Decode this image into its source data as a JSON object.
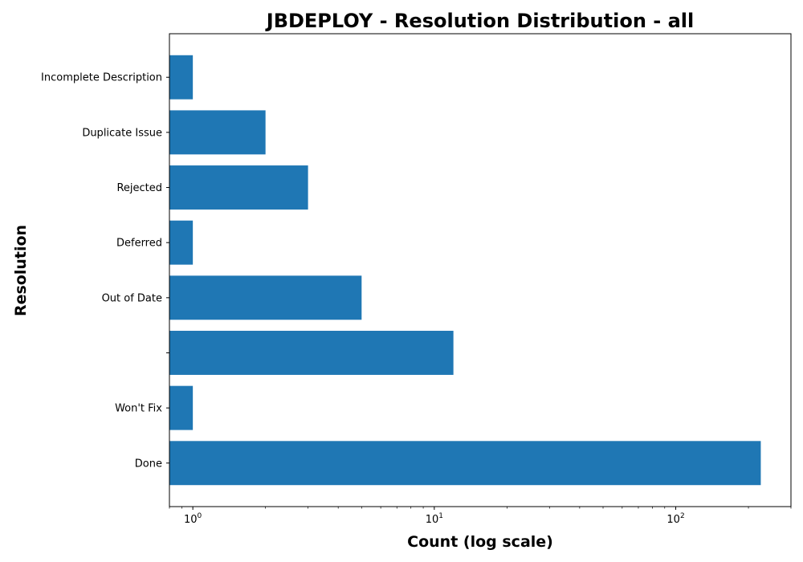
{
  "chart_data": {
    "type": "bar",
    "orientation": "horizontal",
    "title": "JBDEPLOY - Resolution Distribution - all",
    "xlabel": "Count (log scale)",
    "ylabel": "Resolution",
    "x_scale": "log",
    "xlim": [
      0.8,
      300
    ],
    "x_ticks": [
      {
        "value": 1,
        "base": "10",
        "exp": "0"
      },
      {
        "value": 10,
        "base": "10",
        "exp": "1"
      },
      {
        "value": 100,
        "base": "10",
        "exp": "2"
      }
    ],
    "categories": [
      "Done",
      "Won't Fix",
      "",
      "Out of Date",
      "Deferred",
      "Rejected",
      "Duplicate Issue",
      "Incomplete Description"
    ],
    "values": [
      225,
      1,
      12,
      5,
      1,
      3,
      2,
      1
    ],
    "bar_color": "#1f77b4",
    "grid": false,
    "legend": "none"
  }
}
